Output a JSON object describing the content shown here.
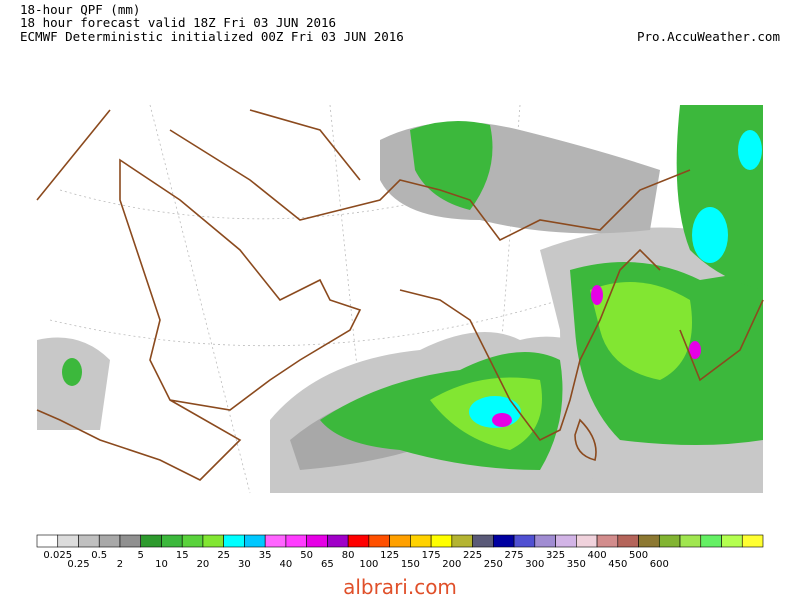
{
  "header": {
    "title": "18-hour QPF (mm)",
    "valid": "18 hour forecast valid 18Z Fri 03 JUN 2016",
    "model": "ECMWF Deterministic initialized 00Z Fri 03 JUN 2016",
    "source": "Pro.AccuWeather.com"
  },
  "legend": {
    "colors": [
      "#ffffff",
      "#dcdcdc",
      "#c0c0c0",
      "#a8a8a8",
      "#909090",
      "#2e9a2e",
      "#3cb83c",
      "#5ad23c",
      "#82e632",
      "#00ffff",
      "#00c8ff",
      "#ff64ff",
      "#ff3cff",
      "#e600e6",
      "#a000c8",
      "#ff0000",
      "#ff5000",
      "#ffa000",
      "#ffd200",
      "#ffff00",
      "#b4b432",
      "#5a5a78",
      "#0000a0",
      "#5050d2",
      "#a08cd2",
      "#d2b4e6",
      "#f0d2dc",
      "#d28c8c",
      "#b4645a",
      "#8c7832",
      "#82b432",
      "#a0e650",
      "#64f064",
      "#b4ff50",
      "#ffff32"
    ],
    "labels": [
      "0.025",
      "0.25",
      "0.5",
      "2",
      "5",
      "10",
      "15",
      "20",
      "25",
      "30",
      "35",
      "40",
      "50",
      "65",
      "80",
      "100",
      "125",
      "150",
      "175",
      "200",
      "225",
      "250",
      "275",
      "300",
      "325",
      "350",
      "400",
      "450",
      "500",
      "600"
    ]
  },
  "watermark": "albrari.com"
}
